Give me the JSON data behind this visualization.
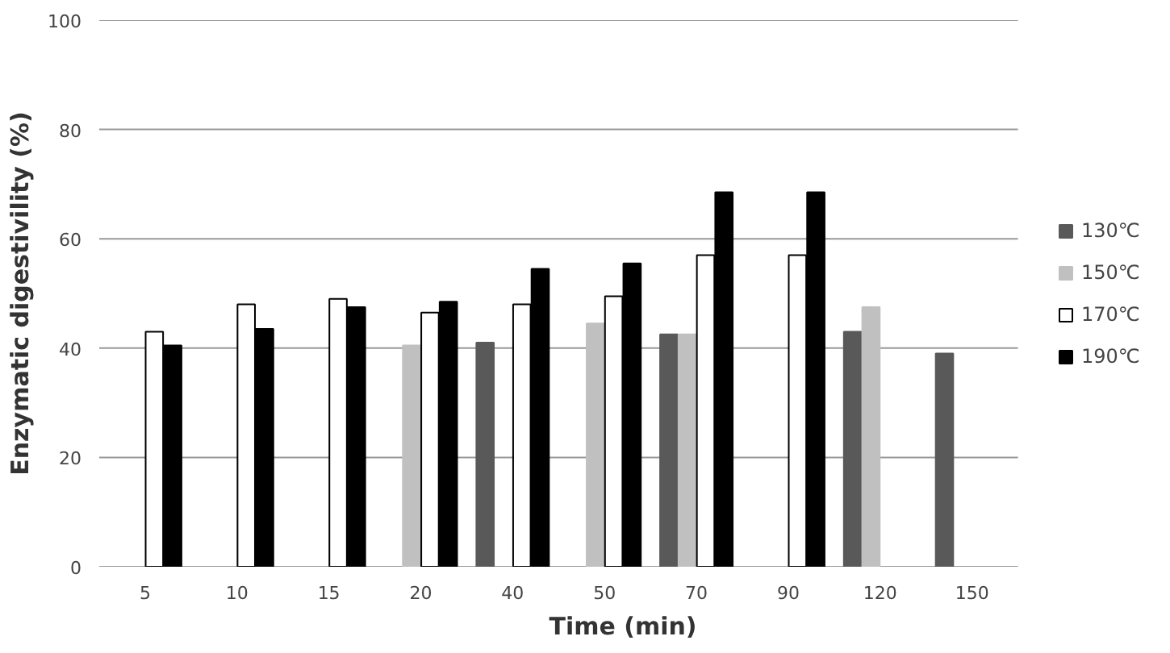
{
  "chart_data": {
    "type": "bar",
    "xlabel": "Time (min)",
    "ylabel": "Enzymatic digestivility (%)",
    "categories": [
      "5",
      "10",
      "15",
      "20",
      "40",
      "50",
      "70",
      "90",
      "120",
      "150"
    ],
    "series": [
      {
        "name": "130℃",
        "color": "#595959",
        "values": [
          null,
          null,
          null,
          null,
          41,
          null,
          42.5,
          null,
          43,
          39
        ]
      },
      {
        "name": "150℃",
        "color": "#c0c0c0",
        "values": [
          null,
          null,
          null,
          40.5,
          null,
          44.5,
          42.5,
          null,
          47.5,
          null
        ]
      },
      {
        "name": "170℃",
        "color": "#ffffff",
        "values": [
          43,
          48,
          49,
          46.5,
          48,
          49.5,
          57,
          57,
          null,
          null
        ]
      },
      {
        "name": "190℃",
        "color": "#000000",
        "values": [
          40.5,
          43.5,
          47.5,
          48.5,
          54.5,
          55.5,
          68.5,
          68.5,
          null,
          null
        ]
      }
    ],
    "ylim": [
      0,
      100
    ],
    "yticks": [
      0,
      20,
      40,
      60,
      80,
      100
    ],
    "grid": "y",
    "legend": "right"
  }
}
